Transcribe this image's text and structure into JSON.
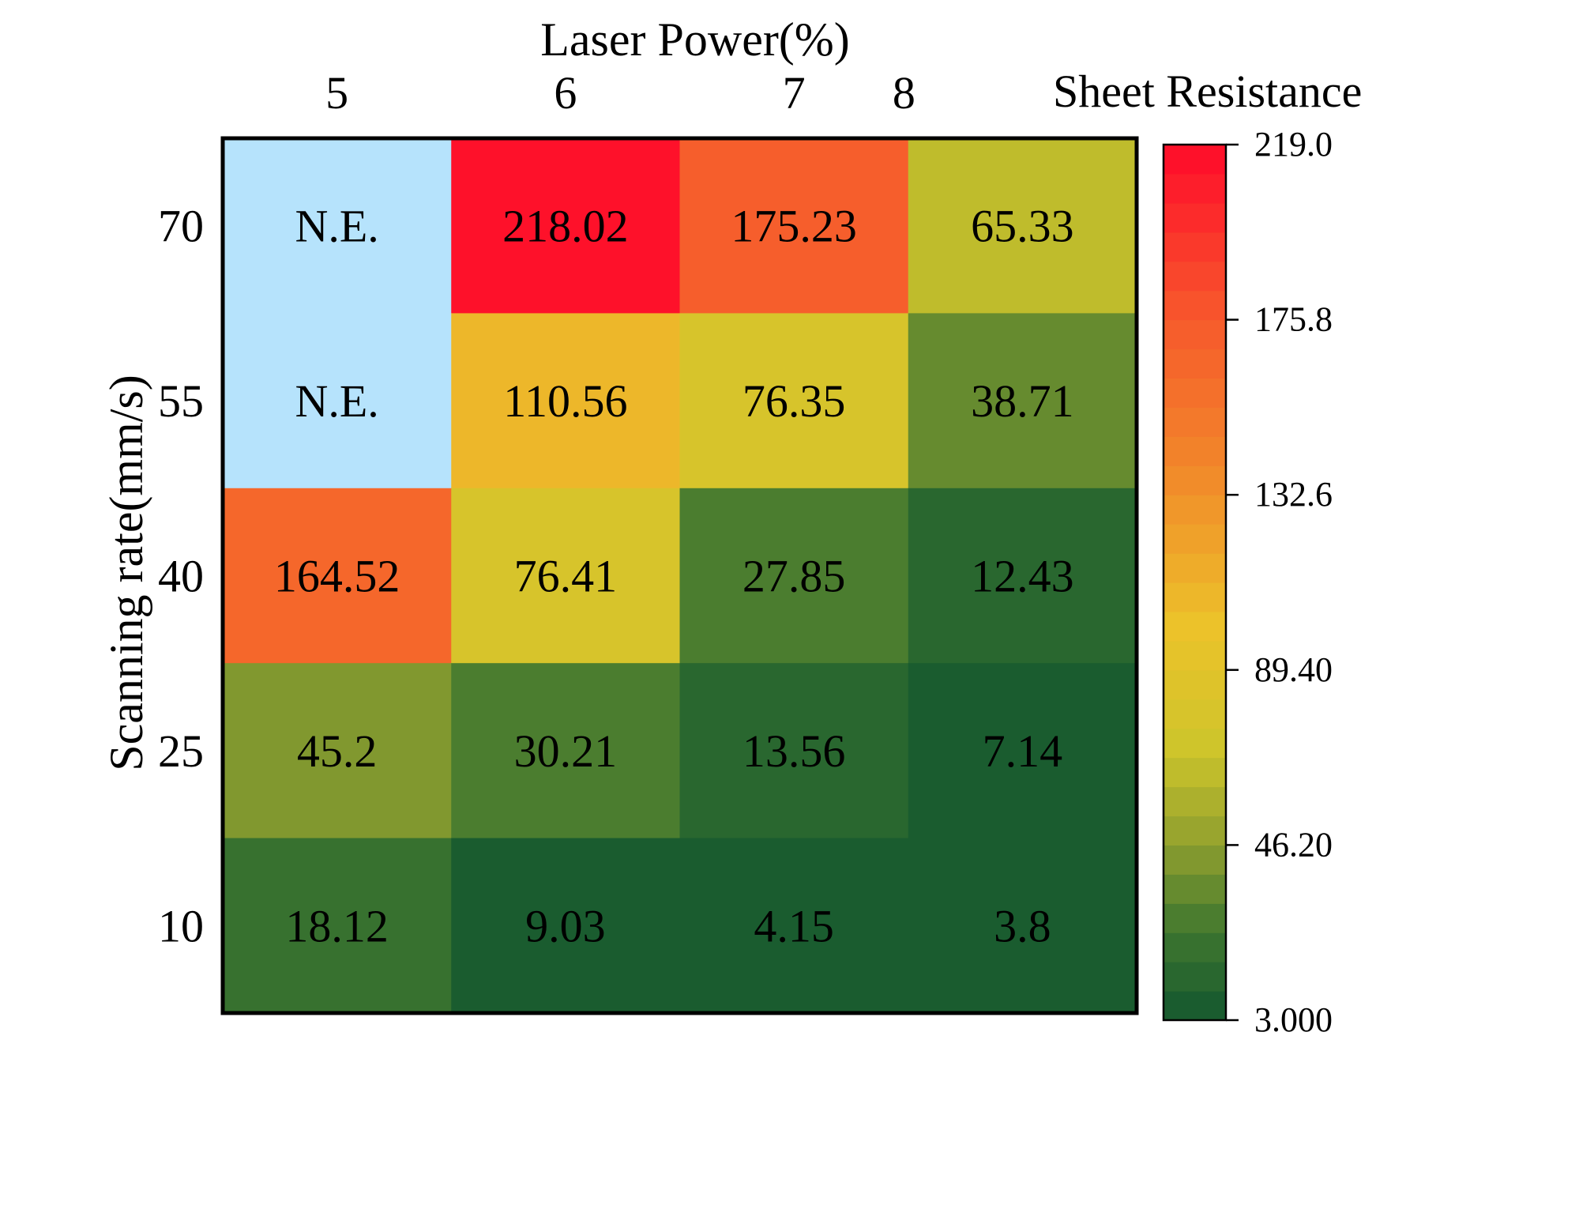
{
  "chart_data": {
    "type": "heatmap",
    "x_axis": {
      "label": "Laser Power(%)",
      "categories": [
        "5",
        "6",
        "7",
        "8"
      ]
    },
    "y_axis": {
      "label": "Scanning rate(mm/s)",
      "categories": [
        "70",
        "55",
        "40",
        "25",
        "10"
      ]
    },
    "cells": [
      [
        "N.E.",
        "218.02",
        "175.23",
        "65.33"
      ],
      [
        "N.E.",
        "110.56",
        "76.35",
        "38.71"
      ],
      [
        "164.52",
        "76.41",
        "27.85",
        "12.43"
      ],
      [
        "45.2",
        "30.21",
        "13.56",
        "7.14"
      ],
      [
        "18.12",
        "9.03",
        "4.15",
        "3.8"
      ]
    ],
    "ne_label": "N.E.",
    "ne_color": "#b6e3fc",
    "colorbar": {
      "title": "Sheet Resistance",
      "min": 3.0,
      "max": 219.0,
      "tick_labels": [
        "219.0",
        "175.8",
        "132.6",
        "89.40",
        "46.20",
        "3.000"
      ],
      "tick_values": [
        219.0,
        175.8,
        132.6,
        89.4,
        46.2,
        3.0
      ],
      "levels": 30,
      "color_stops": [
        {
          "value": 3.0,
          "color": "#13572f"
        },
        {
          "value": 25.0,
          "color": "#3f772f"
        },
        {
          "value": 46.2,
          "color": "#8f9f2f"
        },
        {
          "value": 70.0,
          "color": "#cec52b"
        },
        {
          "value": 100.0,
          "color": "#ecc22a"
        },
        {
          "value": 140.0,
          "color": "#f1862a"
        },
        {
          "value": 175.8,
          "color": "#f75a2c"
        },
        {
          "value": 219.0,
          "color": "#ff0a2a"
        }
      ]
    }
  }
}
